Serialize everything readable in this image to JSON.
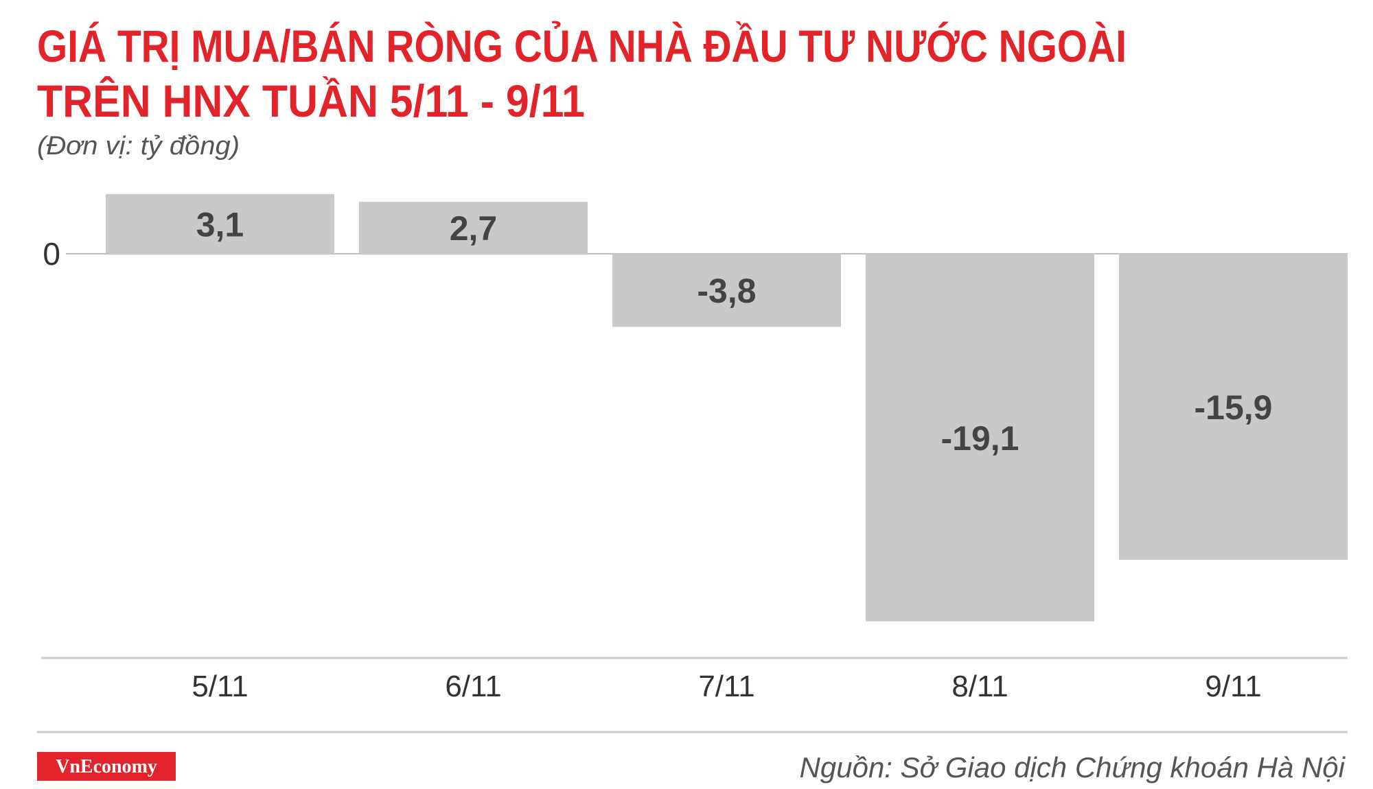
{
  "chart_data": {
    "type": "bar",
    "title": [
      "GIÁ TRỊ MUA/BÁN RÒNG CỦA NHÀ ĐẦU TƯ NƯỚC NGOÀI",
      "TRÊN HNX TUẦN 5/11 - 9/11"
    ],
    "subtitle": "(Đơn vị: tỷ đồng)",
    "categories": [
      "5/11",
      "6/11",
      "7/11",
      "8/11",
      "9/11"
    ],
    "values": [
      3.1,
      2.7,
      -3.8,
      -19.1,
      -15.9
    ],
    "value_labels": [
      "3,1",
      "2,7",
      "-3,8",
      "-19,1",
      "-15,9"
    ],
    "color": "#c9c9c9",
    "ylim": [
      -21,
      4
    ],
    "yticks": [
      0
    ],
    "source": "Nguồn: Sở Giao dịch Chứng khoán Hà Nội",
    "brand": "VnEconomy"
  }
}
